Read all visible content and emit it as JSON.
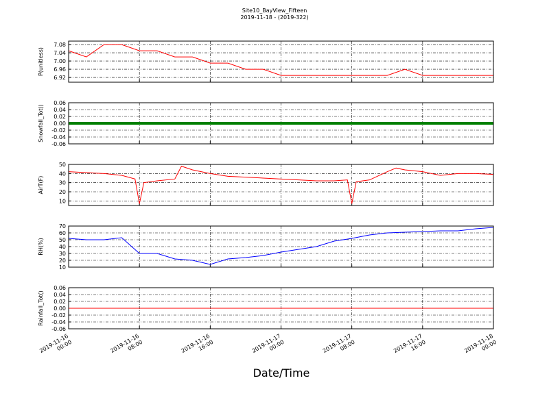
{
  "title": "Site10_BayView_Fifteen",
  "subtitle": "2019-11-18 - (2019-322)",
  "xlabel": "Date/Time",
  "chart_data": [
    {
      "type": "line",
      "ylabel": "P(unitless)",
      "color": "#ff0000",
      "x": [
        "2019-11-16 00:00",
        "2019-11-16 02:00",
        "2019-11-16 04:00",
        "2019-11-16 06:00",
        "2019-11-16 08:00",
        "2019-11-16 10:00",
        "2019-11-16 12:00",
        "2019-11-16 14:00",
        "2019-11-16 16:00",
        "2019-11-16 18:00",
        "2019-11-16 20:00",
        "2019-11-16 22:00",
        "2019-11-17 00:00",
        "2019-11-17 02:00",
        "2019-11-17 04:00",
        "2019-11-17 06:00",
        "2019-11-17 08:00",
        "2019-11-17 10:00",
        "2019-11-17 12:00",
        "2019-11-17 14:00",
        "2019-11-17 16:00",
        "2019-11-17 18:00",
        "2019-11-17 20:00",
        "2019-11-17 22:00",
        "2019-11-18 00:00"
      ],
      "values": [
        7.05,
        7.02,
        7.08,
        7.08,
        7.05,
        7.05,
        7.02,
        7.02,
        6.99,
        6.99,
        6.96,
        6.96,
        6.93,
        6.93,
        6.93,
        6.93,
        6.93,
        6.93,
        6.93,
        6.96,
        6.93,
        6.93,
        6.93,
        6.93,
        6.93
      ],
      "xlim": [
        "2019-11-16 00:00",
        "2019-11-18 00:00"
      ],
      "xticks": [
        "2019-11-16 00:00",
        "2019-11-16 08:00",
        "2019-11-16 16:00",
        "2019-11-17 00:00",
        "2019-11-17 08:00",
        "2019-11-17 16:00",
        "2019-11-18 00:00"
      ],
      "ylim": [
        6.897,
        7.097
      ],
      "yticks": [
        6.92,
        6.96,
        {
          "value": 7,
          "label": "7.00"
        },
        7.04,
        7.08
      ],
      "grid": true
    },
    {
      "type": "line",
      "ylabel": "Snowfall_Tot()",
      "color": "#008000",
      "linewidth": 4,
      "x": [
        "2019-11-16 00:00",
        "2019-11-16 02:00",
        "2019-11-16 04:00",
        "2019-11-16 06:00",
        "2019-11-16 08:00",
        "2019-11-16 10:00",
        "2019-11-16 12:00",
        "2019-11-16 14:00",
        "2019-11-16 16:00",
        "2019-11-16 18:00",
        "2019-11-16 20:00",
        "2019-11-16 22:00",
        "2019-11-17 00:00",
        "2019-11-17 02:00",
        "2019-11-17 04:00",
        "2019-11-17 06:00",
        "2019-11-17 08:00",
        "2019-11-17 10:00",
        "2019-11-17 12:00",
        "2019-11-17 14:00",
        "2019-11-17 16:00",
        "2019-11-17 18:00",
        "2019-11-17 20:00",
        "2019-11-17 22:00",
        "2019-11-18 00:00"
      ],
      "values": [
        0,
        0,
        0,
        0,
        0,
        0,
        0,
        0,
        0,
        0,
        0,
        0,
        0,
        0,
        0,
        0,
        0,
        0,
        0,
        0,
        0,
        0,
        0,
        0,
        0
      ],
      "xlim": [
        "2019-11-16 00:00",
        "2019-11-18 00:00"
      ],
      "xticks": [
        "2019-11-16 00:00",
        "2019-11-16 08:00",
        "2019-11-16 16:00",
        "2019-11-17 00:00",
        "2019-11-17 08:00",
        "2019-11-17 16:00",
        "2019-11-18 00:00"
      ],
      "ylim": [
        -0.06,
        0.06
      ],
      "yticks": [
        -0.06,
        -0.04,
        -0.02,
        {
          "value": 0,
          "label": "0.00"
        },
        0.02,
        0.04,
        0.06
      ],
      "grid": true
    },
    {
      "type": "line",
      "ylabel": "AirT(F)",
      "color": "#ff0000",
      "x": [
        "2019-11-16 00:00",
        "2019-11-16 02:00",
        "2019-11-16 04:00",
        "2019-11-16 06:00",
        "2019-11-16 07:30",
        "2019-11-16 08:00",
        "2019-11-16 08:30",
        "2019-11-16 10:00",
        "2019-11-16 12:00",
        "2019-11-16 12:45",
        "2019-11-16 14:00",
        "2019-11-16 16:00",
        "2019-11-16 18:00",
        "2019-11-16 20:00",
        "2019-11-16 22:00",
        "2019-11-17 00:00",
        "2019-11-17 02:00",
        "2019-11-17 04:00",
        "2019-11-17 06:00",
        "2019-11-17 07:30",
        "2019-11-17 08:00",
        "2019-11-17 08:30",
        "2019-11-17 10:00",
        "2019-11-17 12:00",
        "2019-11-17 13:00",
        "2019-11-17 14:00",
        "2019-11-17 16:00",
        "2019-11-17 18:00",
        "2019-11-17 20:00",
        "2019-11-17 22:00",
        "2019-11-18 00:00"
      ],
      "values": [
        42,
        41,
        40,
        38,
        34,
        7,
        30,
        32,
        34,
        48,
        44,
        40,
        37,
        36,
        35,
        34,
        33,
        32,
        32,
        33,
        7,
        31,
        33,
        42,
        46,
        44,
        42,
        38,
        40,
        40,
        39
      ],
      "xlim": [
        "2019-11-16 00:00",
        "2019-11-18 00:00"
      ],
      "xticks": [
        "2019-11-16 00:00",
        "2019-11-16 08:00",
        "2019-11-16 16:00",
        "2019-11-17 00:00",
        "2019-11-17 08:00",
        "2019-11-17 16:00",
        "2019-11-18 00:00"
      ],
      "ylim": [
        5,
        50
      ],
      "yticks": [
        10,
        20,
        30,
        40,
        50
      ],
      "grid": true
    },
    {
      "type": "line",
      "ylabel": "RH(%)",
      "color": "#0000ff",
      "x": [
        "2019-11-16 00:00",
        "2019-11-16 02:00",
        "2019-11-16 04:00",
        "2019-11-16 06:00",
        "2019-11-16 08:00",
        "2019-11-16 10:00",
        "2019-11-16 12:00",
        "2019-11-16 14:00",
        "2019-11-16 16:00",
        "2019-11-16 18:00",
        "2019-11-16 20:00",
        "2019-11-16 22:00",
        "2019-11-17 00:00",
        "2019-11-17 02:00",
        "2019-11-17 04:00",
        "2019-11-17 06:00",
        "2019-11-17 08:00",
        "2019-11-17 10:00",
        "2019-11-17 12:00",
        "2019-11-17 14:00",
        "2019-11-17 16:00",
        "2019-11-17 18:00",
        "2019-11-17 20:00",
        "2019-11-17 22:00",
        "2019-11-18 00:00"
      ],
      "values": [
        52,
        50,
        50,
        53,
        30,
        30,
        22,
        20,
        14,
        22,
        24,
        27,
        32,
        36,
        40,
        48,
        52,
        57,
        60,
        61,
        62,
        63,
        63,
        66,
        68
      ],
      "xlim": [
        "2019-11-16 00:00",
        "2019-11-18 00:00"
      ],
      "xticks": [
        "2019-11-16 00:00",
        "2019-11-16 08:00",
        "2019-11-16 16:00",
        "2019-11-17 00:00",
        "2019-11-17 08:00",
        "2019-11-17 16:00",
        "2019-11-18 00:00"
      ],
      "ylim": [
        10,
        70
      ],
      "yticks": [
        10,
        20,
        30,
        40,
        50,
        60,
        70
      ],
      "grid": true
    },
    {
      "type": "line",
      "ylabel": "Rainfall_Tot()",
      "color": "#ff0000",
      "show_xtick_labels": true,
      "x": [
        "2019-11-16 00:00",
        "2019-11-16 02:00",
        "2019-11-16 04:00",
        "2019-11-16 06:00",
        "2019-11-16 08:00",
        "2019-11-16 10:00",
        "2019-11-16 12:00",
        "2019-11-16 14:00",
        "2019-11-16 16:00",
        "2019-11-16 18:00",
        "2019-11-16 20:00",
        "2019-11-16 22:00",
        "2019-11-17 00:00",
        "2019-11-17 02:00",
        "2019-11-17 04:00",
        "2019-11-17 06:00",
        "2019-11-17 08:00",
        "2019-11-17 10:00",
        "2019-11-17 12:00",
        "2019-11-17 14:00",
        "2019-11-17 16:00",
        "2019-11-17 18:00",
        "2019-11-17 20:00",
        "2019-11-17 22:00",
        "2019-11-18 00:00"
      ],
      "values": [
        0,
        0,
        0,
        0,
        0,
        0,
        0,
        0,
        0,
        0,
        0,
        0,
        0,
        0,
        0,
        0,
        0,
        0,
        0,
        0,
        0,
        0,
        0,
        0,
        0
      ],
      "xlim": [
        "2019-11-16 00:00",
        "2019-11-18 00:00"
      ],
      "xticks": [
        "2019-11-16 00:00",
        "2019-11-16 08:00",
        "2019-11-16 16:00",
        "2019-11-17 00:00",
        "2019-11-17 08:00",
        "2019-11-17 16:00",
        "2019-11-18 00:00"
      ],
      "ylim": [
        -0.06,
        0.06
      ],
      "yticks": [
        -0.06,
        -0.04,
        -0.02,
        {
          "value": 0,
          "label": "0.00"
        },
        0.02,
        0.04,
        0.06
      ],
      "grid": true
    }
  ]
}
